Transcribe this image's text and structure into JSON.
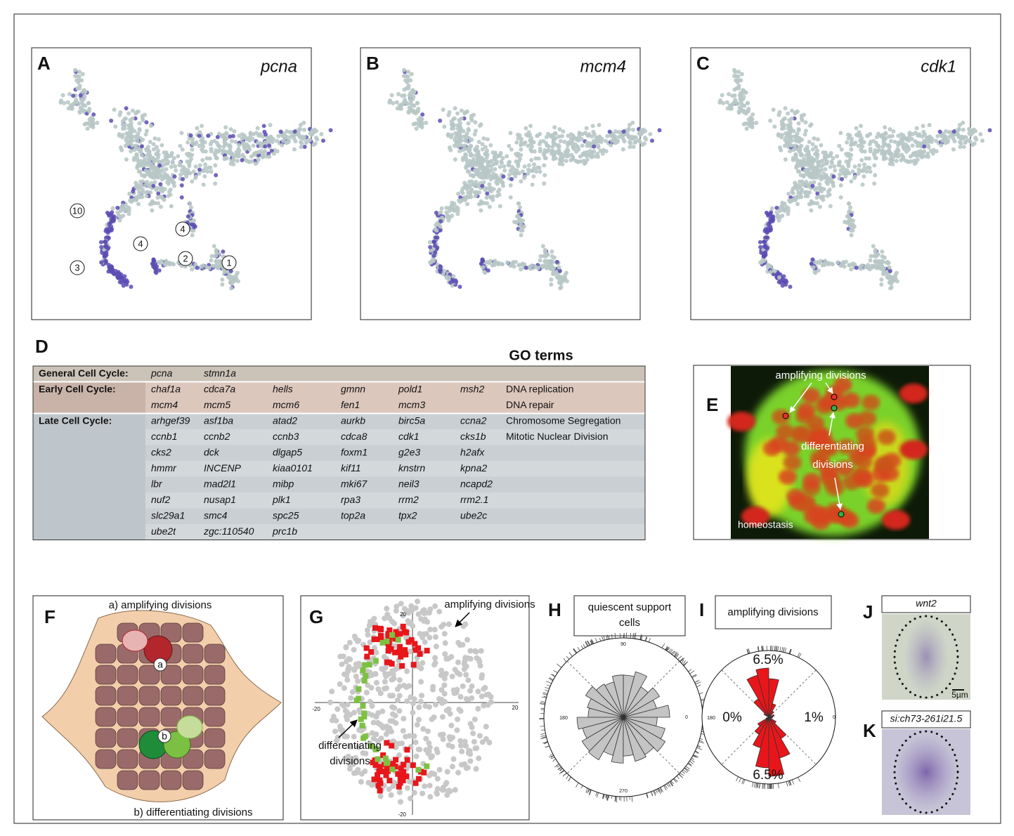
{
  "panel_a": {
    "letter": "A",
    "gene": "pcna",
    "clusters": [
      "10",
      "4",
      "4",
      "2",
      "1",
      "3"
    ]
  },
  "panel_b": {
    "letter": "B",
    "gene": "mcm4"
  },
  "panel_c": {
    "letter": "C",
    "gene": "cdk1"
  },
  "panel_d": {
    "letter": "D",
    "go_heading": "GO terms",
    "rows": [
      {
        "category": "General Cell Cycle:",
        "genes": [
          "pcna",
          "stmn1a"
        ]
      },
      {
        "category": "Early Cell Cycle:",
        "genes": [
          "chaf1a",
          "cdca7a",
          "hells",
          "gmnn",
          "pold1",
          "msh2"
        ],
        "go": "DNA replication"
      },
      {
        "genes": [
          "mcm4",
          "mcm5",
          "mcm6",
          "fen1",
          "mcm3"
        ],
        "go": "DNA repair"
      },
      {
        "category": "Late Cell Cycle:",
        "genes": [
          "arhgef39",
          "asf1ba",
          "atad2",
          "aurkb",
          "birc5a",
          "ccna2"
        ],
        "go": "Chromosome Segregation"
      },
      {
        "genes": [
          "ccnb1",
          "ccnb2",
          "ccnb3",
          "cdca8",
          "cdk1",
          "cks1b"
        ],
        "go": "Mitotic Nuclear Division"
      },
      {
        "genes": [
          "cks2",
          "dck",
          "dlgap5",
          "foxm1",
          "g2e3",
          "h2afx"
        ]
      },
      {
        "genes": [
          "hmmr",
          "INCENP",
          "kiaa0101",
          "kif11",
          "knstrn",
          "kpna2"
        ]
      },
      {
        "genes": [
          "lbr",
          "mad2l1",
          "mibp",
          "mki67",
          "neil3",
          "ncapd2"
        ]
      },
      {
        "genes": [
          "nuf2",
          "nusap1",
          "plk1",
          "rpa3",
          "rrm2",
          "rrm2.1"
        ]
      },
      {
        "genes": [
          "slc29a1",
          "smc4",
          "spc25",
          "top2a",
          "tpx2",
          "ube2c"
        ]
      },
      {
        "genes": [
          "ube2t",
          "zgc:110540",
          "prc1b"
        ]
      }
    ]
  },
  "panel_e": {
    "letter": "E",
    "labels": [
      "amplifying divisions",
      "differentiating",
      "divisions",
      "homeostasis"
    ]
  },
  "panel_f": {
    "letter": "F",
    "labels": [
      "a) amplifying divisions",
      "b) differentiating divisions",
      "a",
      "b"
    ]
  },
  "panel_g": {
    "letter": "G",
    "labels": [
      "amplifying divisions",
      "differentiating",
      "divisions"
    ],
    "axis_ticks": [
      "20",
      "-20",
      "-20",
      "20"
    ]
  },
  "panel_h": {
    "letter": "H",
    "title": [
      "quiescent support",
      "cells"
    ],
    "angles": [
      "90",
      "180",
      "0",
      "270"
    ]
  },
  "panel_i": {
    "letter": "I",
    "title": "amplifying divisions",
    "angles": [
      "180",
      "0"
    ],
    "percentages": [
      "6.5%",
      "0%",
      "1%",
      "6.5%"
    ]
  },
  "panel_j": {
    "letter": "J",
    "title": "wnt2",
    "scale": "5µm"
  },
  "panel_k": {
    "letter": "K",
    "title": "si:ch73-261i21.5"
  }
}
